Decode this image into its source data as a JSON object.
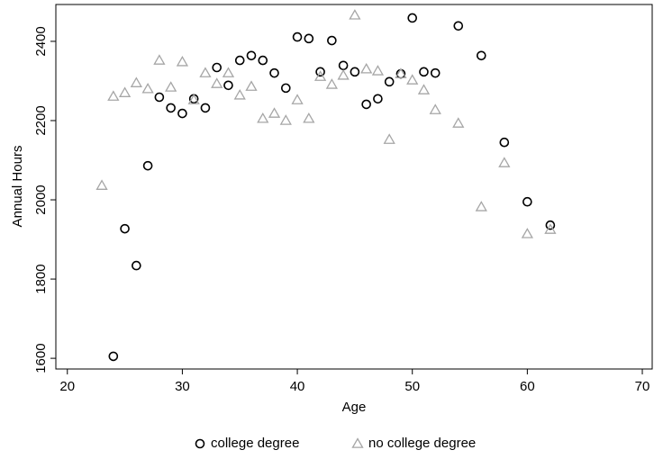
{
  "chart_data": {
    "type": "scatter",
    "x_label": "Age",
    "y_label": "Annual Hours",
    "xlim": [
      19,
      70.86
    ],
    "ylim": [
      1573,
      2493
    ],
    "xticks": [
      20,
      30,
      40,
      50,
      60,
      70
    ],
    "yticks": [
      1600,
      1800,
      2000,
      2200,
      2400
    ],
    "legend": "bottom",
    "series": [
      {
        "name": "college degree",
        "color": "#000000",
        "marker": "circle",
        "x": [
          24,
          25,
          26,
          27,
          28,
          29,
          30,
          31,
          32,
          33,
          34,
          35,
          36,
          37,
          38,
          39,
          40,
          41,
          42,
          43,
          44,
          45,
          46,
          47,
          48,
          49,
          50,
          51,
          52,
          54,
          56,
          58,
          60,
          62
        ],
        "values": [
          1605,
          1927,
          1834,
          2086,
          2259,
          2232,
          2218,
          2255,
          2232,
          2334,
          2289,
          2352,
          2364,
          2352,
          2320,
          2282,
          2411,
          2407,
          2323,
          2402,
          2339,
          2323,
          2241,
          2255,
          2298,
          2318,
          2459,
          2323,
          2320,
          2439,
          2364,
          2145,
          1995,
          1936
        ]
      },
      {
        "name": "no college degree",
        "color": "#a6a6a6",
        "marker": "triangle",
        "x": [
          23,
          24,
          25,
          26,
          27,
          28,
          29,
          30,
          31,
          32,
          33,
          34,
          35,
          36,
          37,
          38,
          39,
          40,
          41,
          42,
          43,
          44,
          45,
          46,
          47,
          48,
          49,
          50,
          51,
          52,
          54,
          56,
          58,
          60,
          62
        ],
        "values": [
          2036,
          2261,
          2270,
          2295,
          2280,
          2352,
          2284,
          2348,
          2252,
          2320,
          2293,
          2320,
          2264,
          2286,
          2205,
          2218,
          2200,
          2252,
          2205,
          2311,
          2291,
          2314,
          2466,
          2330,
          2325,
          2152,
          2318,
          2302,
          2277,
          2227,
          2193,
          1982,
          2093,
          1914,
          1925
        ]
      }
    ]
  }
}
